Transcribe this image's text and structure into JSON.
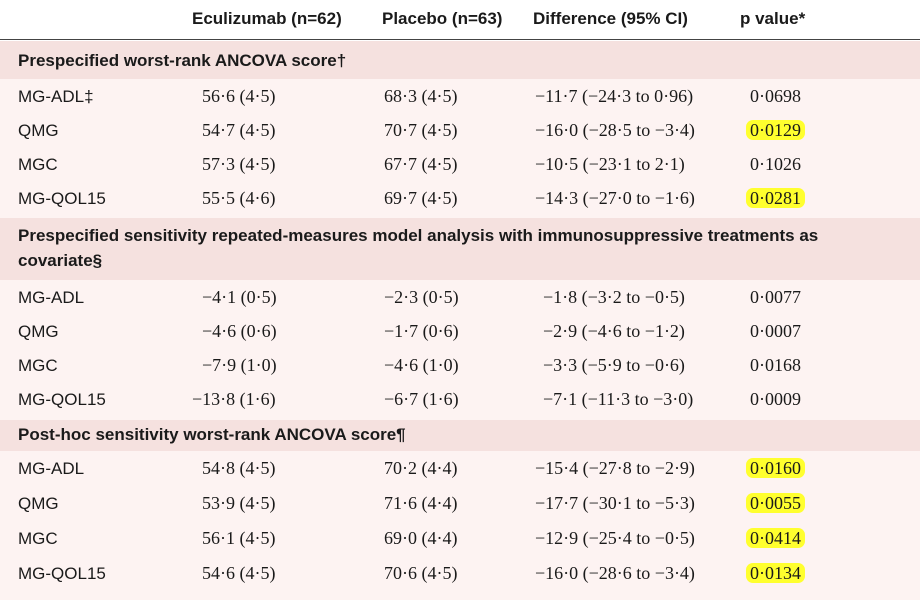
{
  "header": {
    "col_eculizumab": "Eculizumab (n=62)",
    "col_placebo": "Placebo (n=63)",
    "col_difference": "Difference (95% CI)",
    "col_pvalue": "p value*"
  },
  "sections": [
    {
      "title": "Prespecified worst-rank ANCOVA score†",
      "rows": [
        {
          "measure": "MG-ADL‡",
          "eculizumab": "56·6 (4·5)",
          "placebo": "68·3 (4·5)",
          "difference": "−11·7 (−24·3 to 0·96)",
          "p": "0·0698",
          "highlight": false
        },
        {
          "measure": "QMG",
          "eculizumab": "54·7 (4·5)",
          "placebo": "70·7 (4·5)",
          "difference": "−16·0 (−28·5 to −3·4)",
          "p": "0·0129",
          "highlight": true
        },
        {
          "measure": "MGC",
          "eculizumab": "57·3 (4·5)",
          "placebo": "67·7 (4·5)",
          "difference": "−10·5 (−23·1 to 2·1)",
          "p": "0·1026",
          "highlight": false
        },
        {
          "measure": "MG-QOL15",
          "eculizumab": "55·5 (4·6)",
          "placebo": "69·7 (4·5)",
          "difference": "−14·3 (−27·0 to −1·6)",
          "p": "0·0281",
          "highlight": true
        }
      ]
    },
    {
      "title_line1": "Prespecified sensitivity repeated-measures model analysis with immunosuppressive treatments as",
      "title_line2": "covariate§",
      "rows": [
        {
          "measure": "MG-ADL",
          "eculizumab": "−4·1 (0·5)",
          "placebo": "−2·3 (0·5)",
          "difference": "−1·8 (−3·2 to −0·5)",
          "p": "0·0077",
          "highlight": false
        },
        {
          "measure": "QMG",
          "eculizumab": "−4·6 (0·6)",
          "placebo": "−1·7 (0·6)",
          "difference": "−2·9 (−4·6 to −1·2)",
          "p": "0·0007",
          "highlight": false
        },
        {
          "measure": "MGC",
          "eculizumab": "−7·9 (1·0)",
          "placebo": "−4·6 (1·0)",
          "difference": "−3·3 (−5·9 to −0·6)",
          "p": "0·0168",
          "highlight": false
        },
        {
          "measure": "MG-QOL15",
          "eculizumab": "−13·8 (1·6)",
          "placebo": "−6·7 (1·6)",
          "difference": "−7·1 (−11·3 to −3·0)",
          "p": "0·0009",
          "highlight": false
        }
      ]
    },
    {
      "title": "Post-hoc sensitivity worst-rank ANCOVA score¶",
      "rows": [
        {
          "measure": "MG-ADL",
          "eculizumab": "54·8 (4·5)",
          "placebo": "70·2 (4·4)",
          "difference": "−15·4 (−27·8 to −2·9)",
          "p": "0·0160",
          "highlight": true
        },
        {
          "measure": "QMG",
          "eculizumab": "53·9 (4·5)",
          "placebo": "71·6 (4·4)",
          "difference": "−17·7 (−30·1 to −5·3)",
          "p": "0·0055",
          "highlight": true
        },
        {
          "measure": "MGC",
          "eculizumab": "56·1 (4·5)",
          "placebo": "69·0 (4·4)",
          "difference": "−12·9 (−25·4 to −0·5)",
          "p": "0·0414",
          "highlight": true
        },
        {
          "measure": "MG-QOL15",
          "eculizumab": "54·6 (4·5)",
          "placebo": "70·6 (4·5)",
          "difference": "−16·0 (−28·6 to −3·4)",
          "p": "0·0134",
          "highlight": true
        }
      ]
    }
  ],
  "colors": {
    "section_head_bg": "#f5e1df",
    "section_body_bg": "#fdf3f2",
    "highlight": "#ffff2e"
  }
}
